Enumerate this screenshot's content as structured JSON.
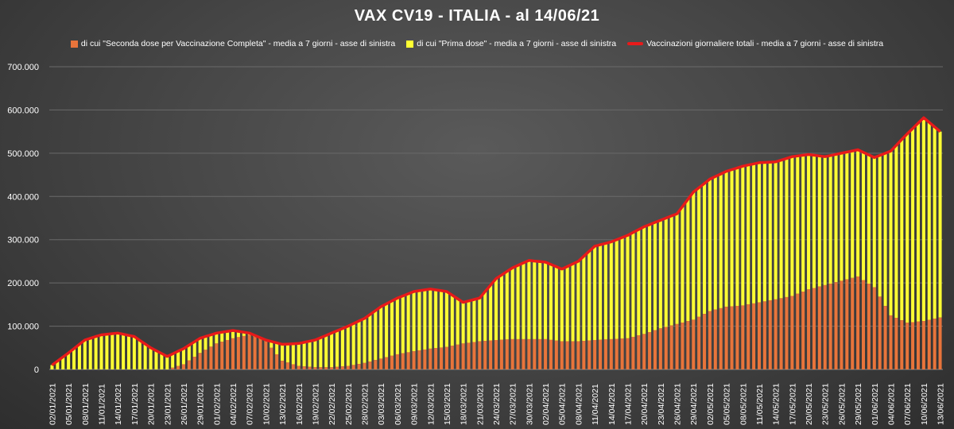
{
  "chart_data": {
    "type": "bar",
    "title": "VAX CV19  -  ITALIA  - al 14/06/21",
    "ylim": [
      0,
      700000
    ],
    "y_ticks": [
      "0",
      "100.000",
      "200.000",
      "300.000",
      "400.000",
      "500.000",
      "600.000",
      "700.000"
    ],
    "grid": true,
    "legend_position": "top",
    "x_start": "02/01/2021",
    "x_end": "13/06/2021",
    "x_tick_labels": [
      "02/01/2021",
      "05/01/2021",
      "08/01/2021",
      "11/01/2021",
      "14/01/2021",
      "17/01/2021",
      "20/01/2021",
      "23/01/2021",
      "26/01/2021",
      "29/01/2021",
      "01/02/2021",
      "04/02/2021",
      "07/02/2021",
      "10/02/2021",
      "13/02/2021",
      "16/02/2021",
      "19/02/2021",
      "22/02/2021",
      "25/02/2021",
      "28/02/2021",
      "03/03/2021",
      "06/03/2021",
      "09/03/2021",
      "12/03/2021",
      "15/03/2021",
      "18/03/2021",
      "21/03/2021",
      "24/03/2021",
      "27/03/2021",
      "30/03/2021",
      "02/04/2021",
      "05/04/2021",
      "08/04/2021",
      "11/04/2021",
      "14/04/2021",
      "17/04/2021",
      "20/04/2021",
      "23/04/2021",
      "26/04/2021",
      "29/04/2021",
      "02/05/2021",
      "05/05/2021",
      "08/05/2021",
      "11/05/2021",
      "14/05/2021",
      "17/05/2021",
      "20/05/2021",
      "23/05/2021",
      "26/05/2021",
      "29/05/2021",
      "01/06/2021",
      "04/06/2021",
      "07/06/2021",
      "10/06/2021",
      "13/06/2021"
    ],
    "key_dates": [
      "02/01/2021",
      "05/01/2021",
      "08/01/2021",
      "11/01/2021",
      "14/01/2021",
      "17/01/2021",
      "20/01/2021",
      "23/01/2021",
      "26/01/2021",
      "29/01/2021",
      "01/02/2021",
      "04/02/2021",
      "07/02/2021",
      "10/02/2021",
      "13/02/2021",
      "16/02/2021",
      "19/02/2021",
      "22/02/2021",
      "25/02/2021",
      "28/02/2021",
      "03/03/2021",
      "06/03/2021",
      "09/03/2021",
      "12/03/2021",
      "15/03/2021",
      "18/03/2021",
      "21/03/2021",
      "24/03/2021",
      "27/03/2021",
      "30/03/2021",
      "02/04/2021",
      "05/04/2021",
      "08/04/2021",
      "11/04/2021",
      "14/04/2021",
      "17/04/2021",
      "20/04/2021",
      "23/04/2021",
      "26/04/2021",
      "29/04/2021",
      "02/05/2021",
      "05/05/2021",
      "08/05/2021",
      "11/05/2021",
      "14/05/2021",
      "17/05/2021",
      "20/05/2021",
      "23/05/2021",
      "26/05/2021",
      "29/05/2021",
      "01/06/2021",
      "04/06/2021",
      "07/06/2021",
      "10/06/2021",
      "13/06/2021"
    ],
    "key_total": [
      10000,
      38000,
      68000,
      80000,
      84000,
      76000,
      50000,
      30000,
      48000,
      72000,
      84000,
      90000,
      84000,
      68000,
      58000,
      60000,
      68000,
      84000,
      100000,
      118000,
      145000,
      165000,
      180000,
      186000,
      180000,
      155000,
      165000,
      210000,
      235000,
      252000,
      248000,
      232000,
      250000,
      285000,
      295000,
      310000,
      330000,
      345000,
      360000,
      410000,
      440000,
      458000,
      470000,
      478000,
      480000,
      492000,
      497000,
      492000,
      500000,
      508000,
      490000,
      505000,
      545000,
      582000,
      550000
    ],
    "key_second": [
      0,
      0,
      0,
      0,
      0,
      0,
      0,
      0,
      12000,
      38000,
      60000,
      72000,
      80000,
      65000,
      20000,
      8000,
      5000,
      5000,
      8000,
      15000,
      25000,
      35000,
      42000,
      48000,
      52000,
      60000,
      65000,
      68000,
      70000,
      70000,
      70000,
      65000,
      65000,
      68000,
      70000,
      72000,
      82000,
      95000,
      105000,
      115000,
      135000,
      145000,
      148000,
      155000,
      162000,
      170000,
      185000,
      195000,
      205000,
      215000,
      190000,
      125000,
      108000,
      112000,
      120000
    ],
    "series": [
      {
        "name": "di cui \"Seconda dose per Vaccinazione Completa\" - media a 7 giorni - asse di sinistra",
        "color": "#E8743B"
      },
      {
        "name": "di cui \"Prima dose\" - media a 7 giorni - asse di sinistra",
        "color": "#FFFF33"
      },
      {
        "name": "Vaccinazioni giornaliere totali - media a 7 giorni - asse di sinistra",
        "color": "#E81A1A"
      }
    ]
  }
}
